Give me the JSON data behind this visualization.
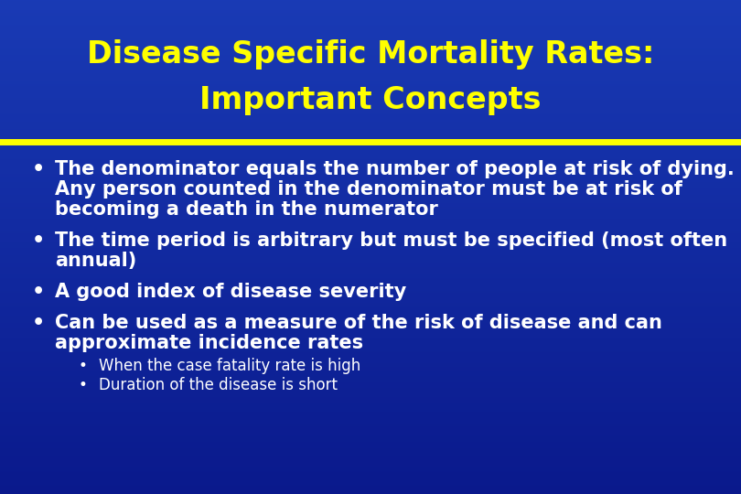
{
  "title_line1": "Disease Specific Mortality Rates:",
  "title_line2": "Important Concepts",
  "title_color": "#FFFF00",
  "separator_color": "#FFFF00",
  "body_bg_top": "#1A3AB5",
  "body_bg_bottom": "#0A1A8A",
  "bullet_color": "#FFFFFF",
  "bullet_marker_color": "#FFFFFF",
  "sub_bullet_color": "#FFFFFF",
  "bullets": [
    {
      "text": "The denominator equals the number of people at risk of dying.\nAny person counted in the denominator must be at risk of\nbecoming a death in the numerator",
      "sub_bullets": []
    },
    {
      "text": "The time period is arbitrary but must be specified (most often\nannual)",
      "sub_bullets": []
    },
    {
      "text": "A good index of disease severity",
      "sub_bullets": []
    },
    {
      "text": "Can be used as a measure of the risk of disease and can\napproximate incidence rates",
      "sub_bullets": [
        "When the case fatality rate is high",
        "Duration of the disease is short"
      ]
    }
  ],
  "title_fontsize": 24,
  "bullet_fontsize": 15,
  "sub_bullet_fontsize": 12,
  "fig_width": 8.1,
  "fig_height": 5.4,
  "dpi": 100
}
